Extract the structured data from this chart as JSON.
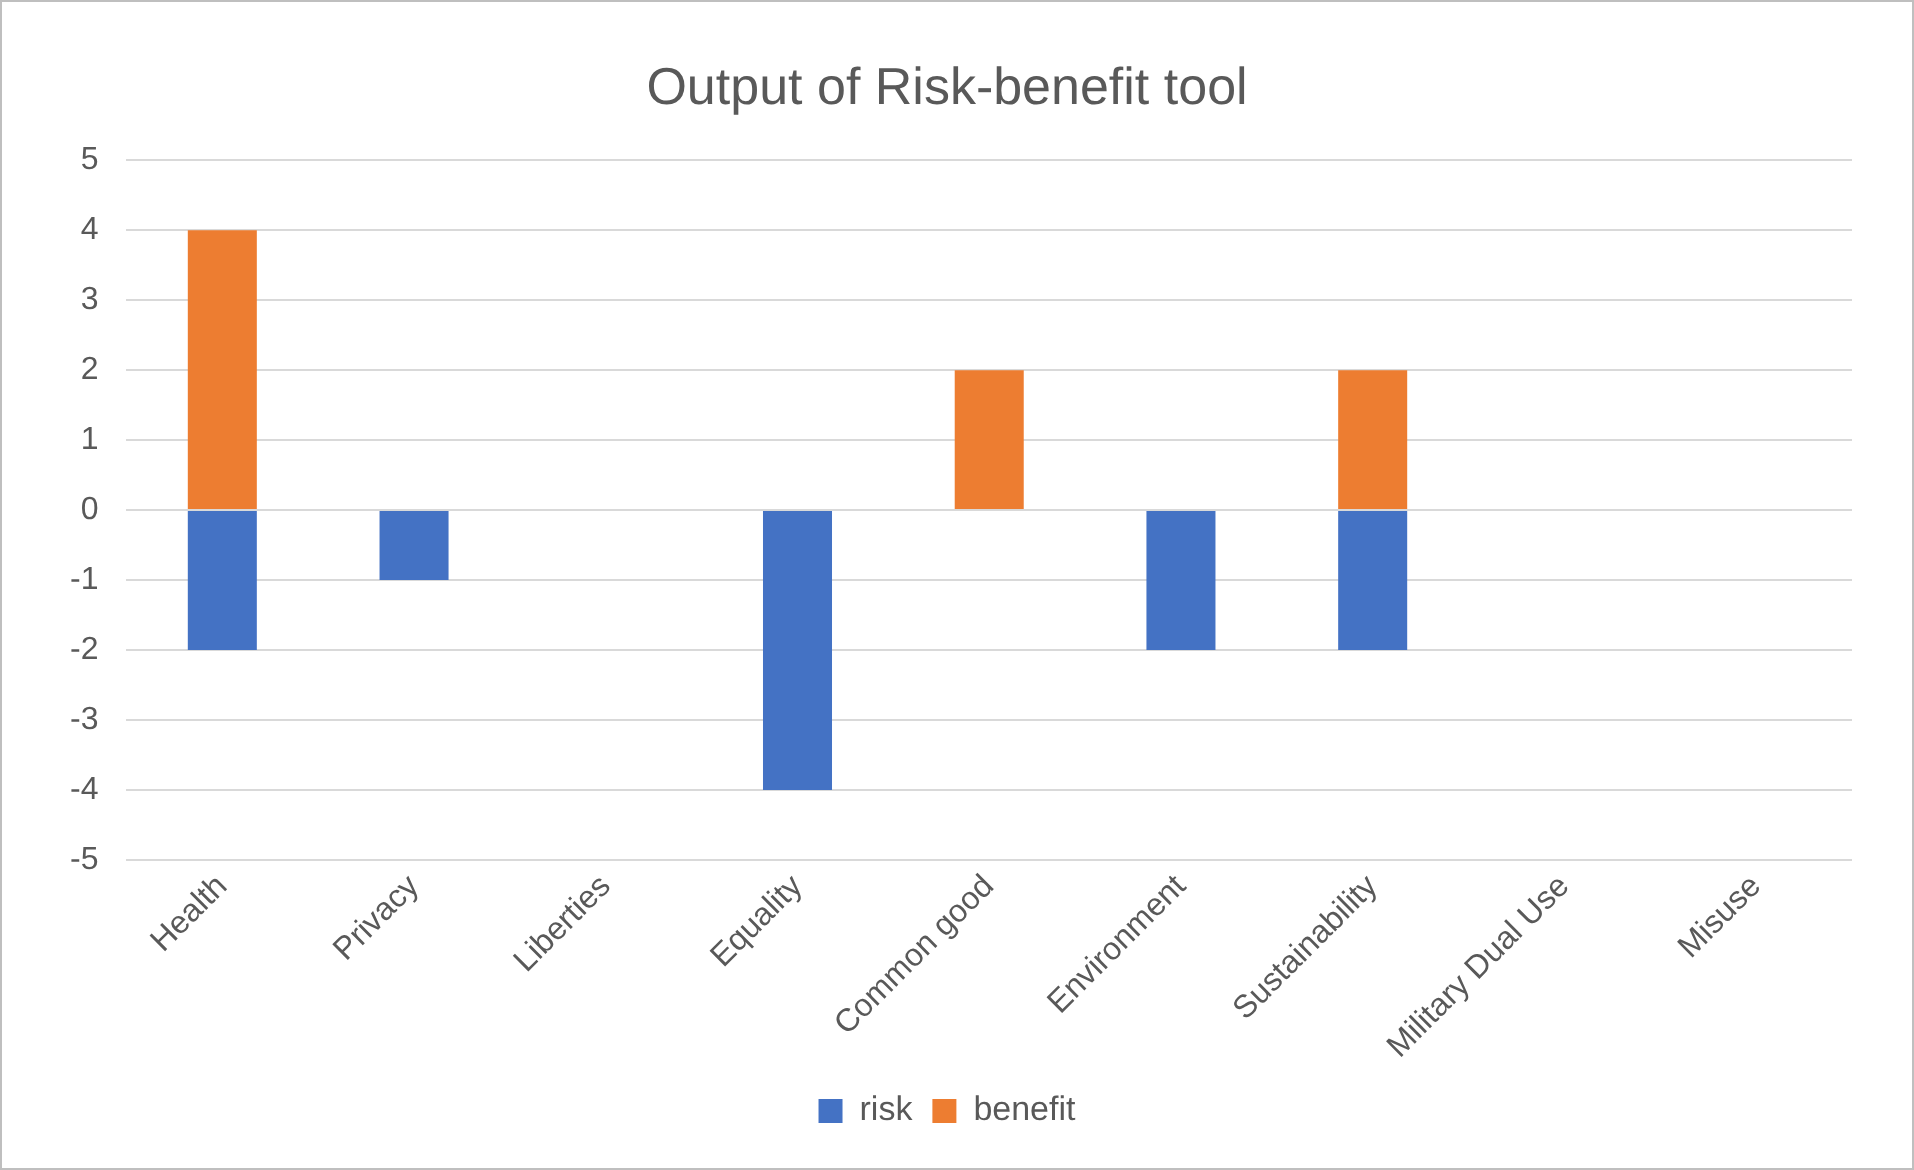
{
  "chart_data": {
    "type": "bar",
    "title": "Output of Risk-benefit tool",
    "stacked": true,
    "categories": [
      "Health",
      "Privacy",
      "Liberties",
      "Equality",
      "Common good",
      "Environment",
      "Sustainability",
      "Military Dual Use",
      "Misuse"
    ],
    "series": [
      {
        "name": "risk",
        "color": "#4472c4",
        "values": [
          -2,
          -1,
          null,
          -4,
          null,
          -2,
          -2,
          null,
          null
        ]
      },
      {
        "name": "benefit",
        "color": "#ed7d31",
        "values": [
          4,
          null,
          null,
          null,
          2,
          null,
          2,
          null,
          null
        ]
      }
    ],
    "ylim": [
      -5,
      5
    ],
    "yticks": [
      -5,
      -4,
      -3,
      -2,
      -1,
      0,
      1,
      2,
      3,
      4,
      5
    ],
    "grid": "y",
    "legend": "bottom"
  }
}
